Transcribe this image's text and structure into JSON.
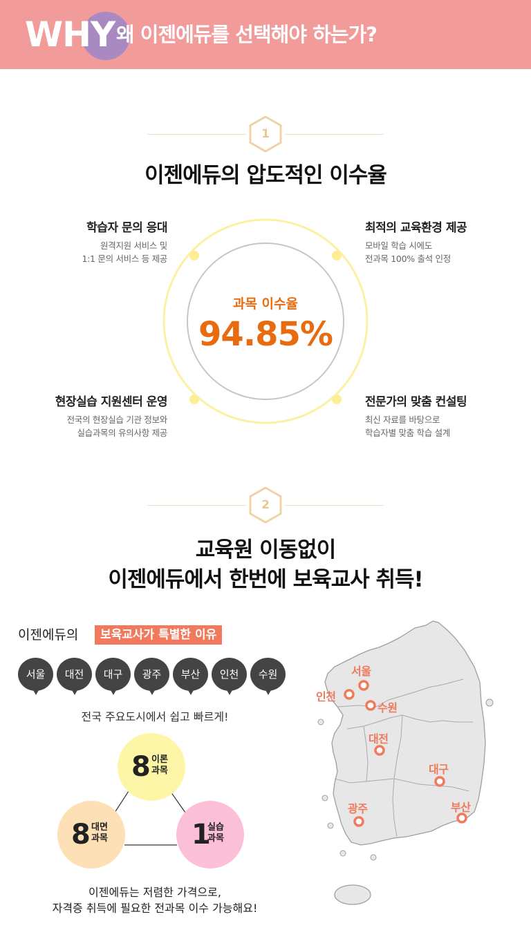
{
  "header": {
    "why": "WHY",
    "title": "왜 이젠에듀를 선택해야 하는가?"
  },
  "section1": {
    "number": "1",
    "title": "이젠에듀의 압도적인 이수율",
    "rate_label": "과목 이수율",
    "rate_value": "94.85%",
    "features": [
      {
        "title": "학습자 문의 응대",
        "desc1": "원격지원 서비스 및",
        "desc2": "1:1 문의 서비스 등 제공"
      },
      {
        "title": "최적의 교육환경 제공",
        "desc1": "모바일 학습 시에도",
        "desc2": "전과목 100% 출석 인정"
      },
      {
        "title": "현장실습 지원센터 운영",
        "desc1": "전국의 현장실습 기관 정보와",
        "desc2": "실습과목의 유의사항 제공"
      },
      {
        "title": "전문가의 맞춤 컨설팅",
        "desc1": "최신 자료를 바탕으로",
        "desc2": "학습자별 맞춤 학습 설계"
      }
    ]
  },
  "section2": {
    "number": "2",
    "title_line1": "교육원 이동없이",
    "title_line2": "이젠에듀에서 한번에 보육교사 취득!",
    "reason_prefix": "이젠에듀의",
    "reason_tag": "보육교사가 특별한 이유",
    "cities": [
      "서울",
      "대전",
      "대구",
      "광주",
      "부산",
      "인천",
      "수원"
    ],
    "nation_text": "전국 주요도시에서 쉽고 빠르게!",
    "circles": [
      {
        "num": "8",
        "label1": "이론",
        "label2": "과목"
      },
      {
        "num": "8",
        "label1": "대면",
        "label2": "과목"
      },
      {
        "num": "1",
        "label1": "실습",
        "label2": "과목"
      }
    ],
    "footer_line1": "이젠에듀는 저렴한 가격으로,",
    "footer_line2": "자격증 취득에 필요한 전과목 이수 가능해요!",
    "map_cities": [
      "서울",
      "인천",
      "수원",
      "대전",
      "대구",
      "광주",
      "부산"
    ]
  }
}
